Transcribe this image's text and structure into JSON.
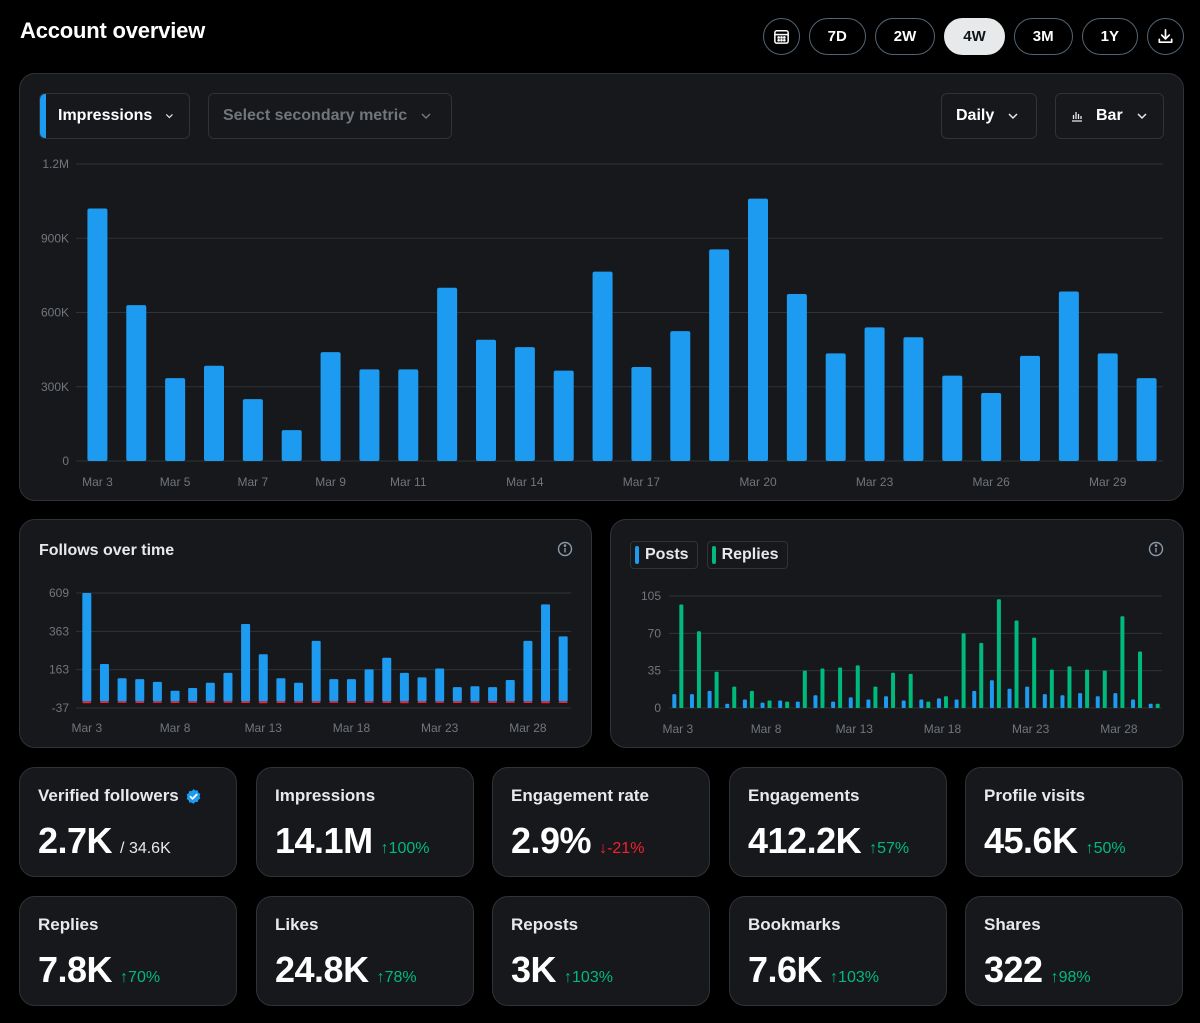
{
  "header": {
    "title": "Account overview",
    "ranges": [
      "7D",
      "2W",
      "4W",
      "3M",
      "1Y"
    ],
    "active_range": "4W",
    "icons": {
      "calendar": "calendar-icon",
      "download": "download-icon"
    }
  },
  "main_chart": {
    "primary_metric": "Impressions",
    "secondary_placeholder": "Select secondary metric",
    "interval": "Daily",
    "chart_type": "Bar",
    "color": "#1d9bf0"
  },
  "follows_card": {
    "title": "Follows over time"
  },
  "posts_card": {
    "legend": [
      "Posts",
      "Replies"
    ],
    "colors": {
      "posts": "#1d9bf0",
      "replies": "#00ba7c"
    }
  },
  "stats": [
    {
      "label": "Verified followers",
      "value": "2.7K",
      "sub": "/ 34.6K",
      "delta": "",
      "dir": "",
      "verified": true
    },
    {
      "label": "Impressions",
      "value": "14.1M",
      "sub": "",
      "delta": "100%",
      "dir": "up"
    },
    {
      "label": "Engagement rate",
      "value": "2.9%",
      "sub": "",
      "delta": "-21%",
      "dir": "down"
    },
    {
      "label": "Engagements",
      "value": "412.2K",
      "sub": "",
      "delta": "57%",
      "dir": "up"
    },
    {
      "label": "Profile visits",
      "value": "45.6K",
      "sub": "",
      "delta": "50%",
      "dir": "up"
    },
    {
      "label": "Replies",
      "value": "7.8K",
      "sub": "",
      "delta": "70%",
      "dir": "up"
    },
    {
      "label": "Likes",
      "value": "24.8K",
      "sub": "",
      "delta": "78%",
      "dir": "up"
    },
    {
      "label": "Reposts",
      "value": "3K",
      "sub": "",
      "delta": "103%",
      "dir": "up"
    },
    {
      "label": "Bookmarks",
      "value": "7.6K",
      "sub": "",
      "delta": "103%",
      "dir": "up"
    },
    {
      "label": "Shares",
      "value": "322",
      "sub": "",
      "delta": "98%",
      "dir": "up"
    }
  ],
  "chart_data": [
    {
      "id": "impressions",
      "type": "bar",
      "series": [
        {
          "name": "Impressions",
          "values": [
            1020000,
            630000,
            335000,
            385000,
            250000,
            125000,
            440000,
            370000,
            370000,
            700000,
            490000,
            460000,
            365000,
            765000,
            380000,
            525000,
            855000,
            1060000,
            675000,
            435000,
            540000,
            500000,
            345000,
            275000,
            425000,
            685000,
            435000,
            335000
          ]
        }
      ],
      "categories": [
        "Mar 3",
        "Mar 4",
        "Mar 5",
        "Mar 6",
        "Mar 7",
        "Mar 8",
        "Mar 9",
        "Mar 10",
        "Mar 11",
        "Mar 12",
        "Mar 13",
        "Mar 14",
        "Mar 15",
        "Mar 16",
        "Mar 17",
        "Mar 18",
        "Mar 19",
        "Mar 20",
        "Mar 21",
        "Mar 22",
        "Mar 23",
        "Mar 24",
        "Mar 25",
        "Mar 26",
        "Mar 27",
        "Mar 28",
        "Mar 29",
        "Mar 30"
      ],
      "xticks": [
        "Mar 3",
        "Mar 5",
        "Mar 7",
        "Mar 9",
        "Mar 11",
        "Mar 14",
        "Mar 17",
        "Mar 20",
        "Mar 23",
        "Mar 26",
        "Mar 29"
      ],
      "yticks": [
        "0",
        "300K",
        "600K",
        "900K",
        "1.2M"
      ],
      "ylim": [
        0,
        1200000
      ],
      "grid": true
    },
    {
      "id": "follows",
      "type": "bar",
      "series": [
        {
          "name": "Follows",
          "values": [
            609,
            210,
            130,
            125,
            110,
            60,
            75,
            105,
            160,
            435,
            265,
            130,
            105,
            340,
            125,
            125,
            180,
            245,
            160,
            135,
            185,
            80,
            85,
            80,
            120,
            340,
            545,
            365
          ]
        },
        {
          "name": "Unfollows",
          "values": [
            -10,
            -9,
            -8,
            -9,
            -8,
            -9,
            -8,
            -9,
            -8,
            -9,
            -10,
            -9,
            -8,
            -9,
            -8,
            -9,
            -8,
            -9,
            -10,
            -9,
            -8,
            -9,
            -8,
            -9,
            -8,
            -9,
            -10,
            -9
          ]
        }
      ],
      "xticks": [
        "Mar 3",
        "Mar 8",
        "Mar 13",
        "Mar 18",
        "Mar 23",
        "Mar 28"
      ],
      "yticks": [
        "-37",
        "163",
        "363",
        "609"
      ],
      "ylim": [
        -37,
        609
      ],
      "grid": true
    },
    {
      "id": "posts_replies",
      "type": "bar",
      "series": [
        {
          "name": "Posts",
          "values": [
            13,
            13,
            16,
            4,
            8,
            5,
            7,
            6,
            12,
            6,
            10,
            8,
            11,
            7,
            8,
            9,
            8,
            16,
            26,
            18,
            20,
            13,
            12,
            14,
            11,
            14,
            8,
            4
          ]
        },
        {
          "name": "Replies",
          "values": [
            97,
            72,
            34,
            20,
            16,
            7,
            6,
            35,
            37,
            38,
            40,
            20,
            33,
            32,
            6,
            11,
            70,
            61,
            102,
            82,
            66,
            36,
            39,
            36,
            35,
            86,
            53,
            4
          ]
        }
      ],
      "xticks": [
        "Mar 3",
        "Mar 8",
        "Mar 13",
        "Mar 18",
        "Mar 23",
        "Mar 28"
      ],
      "yticks": [
        "0",
        "35",
        "70",
        "105"
      ],
      "ylim": [
        0,
        105
      ],
      "grid": true
    }
  ]
}
